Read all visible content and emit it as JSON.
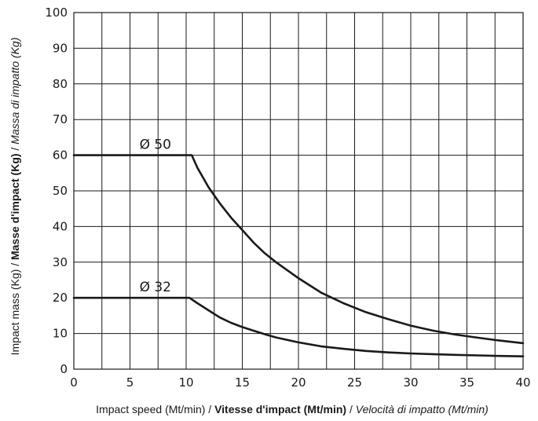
{
  "chart_data": {
    "type": "line",
    "xlabel": {
      "part1": "Impact speed (Mt/min) / ",
      "part2": "Vitesse d'impact (Mt/min)",
      "part3": " / ",
      "part4": "Velocità di impatto (Mt/min)"
    },
    "ylabel": {
      "part1": "Impact mass (Kg) / ",
      "part2": "Masse d'impact (Kg)",
      "part3": " / ",
      "part4": "Massa di impatto (Kg)"
    },
    "xlim": [
      0,
      40
    ],
    "ylim": [
      0,
      100
    ],
    "x_ticks": [
      "0",
      "5",
      "10",
      "15",
      "20",
      "25",
      "30",
      "35",
      "40"
    ],
    "y_ticks": [
      "0",
      "10",
      "20",
      "30",
      "40",
      "50",
      "60",
      "70",
      "80",
      "90",
      "100"
    ],
    "x_grid_step": 2.5,
    "y_grid_step": 10,
    "grid": true,
    "series": [
      {
        "name": "Ø 50",
        "label_at": {
          "x": 6,
          "y": 60
        },
        "points": [
          [
            0,
            60
          ],
          [
            10.5,
            60
          ],
          [
            11,
            56.5
          ],
          [
            12,
            51
          ],
          [
            13,
            46.5
          ],
          [
            14,
            42.5
          ],
          [
            15,
            39
          ],
          [
            16,
            35.5
          ],
          [
            17,
            32.5
          ],
          [
            18,
            30
          ],
          [
            20,
            25.5
          ],
          [
            22,
            21.5
          ],
          [
            24,
            18.5
          ],
          [
            26,
            16
          ],
          [
            28,
            14
          ],
          [
            30,
            12.2
          ],
          [
            32,
            10.8
          ],
          [
            34,
            9.7
          ],
          [
            36,
            8.8
          ],
          [
            38,
            8.0
          ],
          [
            40,
            7.3
          ]
        ]
      },
      {
        "name": "Ø 32",
        "label_at": {
          "x": 6,
          "y": 20
        },
        "points": [
          [
            0,
            20
          ],
          [
            10.3,
            20
          ],
          [
            11,
            18.5
          ],
          [
            12,
            16.5
          ],
          [
            13,
            14.5
          ],
          [
            14,
            13
          ],
          [
            15,
            11.8
          ],
          [
            16,
            10.8
          ],
          [
            17,
            9.8
          ],
          [
            18,
            8.9
          ],
          [
            20,
            7.5
          ],
          [
            22,
            6.4
          ],
          [
            24,
            5.7
          ],
          [
            26,
            5.1
          ],
          [
            28,
            4.7
          ],
          [
            30,
            4.4
          ],
          [
            32,
            4.2
          ],
          [
            34,
            4.0
          ],
          [
            36,
            3.85
          ],
          [
            38,
            3.7
          ],
          [
            40,
            3.6
          ]
        ]
      }
    ]
  }
}
